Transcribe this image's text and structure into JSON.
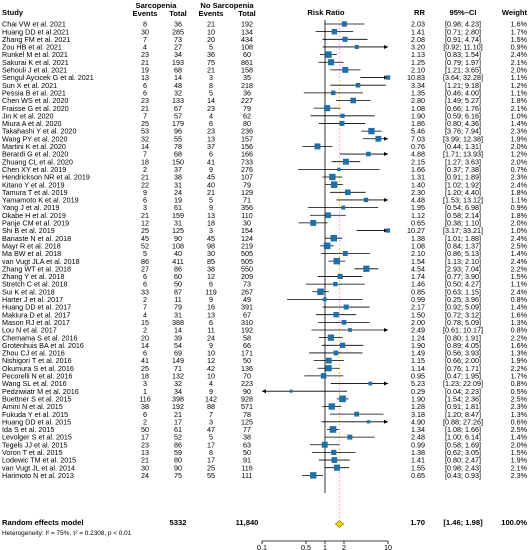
{
  "chart_data": {
    "type": "forest",
    "scale": "log",
    "xlim": [
      0.1,
      10
    ],
    "x_ticks": [
      "0.1",
      "0.5",
      "1",
      "2",
      "10"
    ],
    "x_tick_values": [
      0.1,
      0.5,
      1,
      2,
      10
    ],
    "headers": {
      "study": "Study",
      "group1": "Sarcopenia",
      "group2": "No Sarcopenia",
      "events": "Events",
      "total": "Total",
      "plot": "Risk Ratio",
      "rr": "RR",
      "ci": "95%–CI",
      "weight": "Weight"
    },
    "studies": [
      {
        "study": "Chai VW et al. 2021",
        "e1": 8,
        "t1": 36,
        "e2": 21,
        "t2": 192,
        "rr": 2.03,
        "lo": 0.98,
        "hi": 4.23,
        "rr_text": "2.03",
        "ci_text": "[0.98; 4.23]",
        "weight": "1.6%"
      },
      {
        "study": "Huang DD et al.2021",
        "e1": 30,
        "t1": 285,
        "e2": 10,
        "t2": 134,
        "rr": 1.41,
        "lo": 0.71,
        "hi": 2.8,
        "rr_text": "1.41",
        "ci_text": "[0.71; 2.80]",
        "weight": "1.7%"
      },
      {
        "study": "Zhang FM et al. 2021",
        "e1": 7,
        "t1": 73,
        "e2": 20,
        "t2": 434,
        "rr": 2.08,
        "lo": 0.91,
        "hi": 4.74,
        "rr_text": "2.08",
        "ci_text": "[0.91; 4.74]",
        "weight": "1.5%"
      },
      {
        "study": "Zou HB et al. 2021",
        "e1": 4,
        "t1": 27,
        "e2": 5,
        "t2": 108,
        "rr": 3.2,
        "lo": 0.92,
        "hi": 11.1,
        "rr_text": "3.20",
        "ci_text": "[0.92; 11.10]",
        "weight": "0.9%"
      },
      {
        "study": "Runkel M et al. 2021",
        "e1": 23,
        "t1": 34,
        "e2": 36,
        "t2": 60,
        "rr": 1.13,
        "lo": 0.83,
        "hi": 1.54,
        "rr_text": "1.13",
        "ci_text": "[0.83; 1.54]",
        "weight": "2.4%"
      },
      {
        "study": "Sakurai K et al. 2021",
        "e1": 21,
        "t1": 193,
        "e2": 75,
        "t2": 861,
        "rr": 1.25,
        "lo": 0.79,
        "hi": 1.97,
        "rr_text": "1.25",
        "ci_text": "[0.79; 1.97]",
        "weight": "2.1%"
      },
      {
        "study": "Sehouli J et al. 2021",
        "e1": 19,
        "t1": 68,
        "e2": 21,
        "t2": 158,
        "rr": 2.1,
        "lo": 1.21,
        "hi": 3.65,
        "rr_text": "2.10",
        "ci_text": "[1.21; 3.65]",
        "weight": "2.0%"
      },
      {
        "study": "Sengul Aycicek G et al. 2021",
        "e1": 13,
        "t1": 14,
        "e2": 3,
        "t2": 35,
        "rr": 10.83,
        "lo": 3.64,
        "hi": 32.28,
        "rr_text": "10.83",
        "ci_text": "[3.64; 32.28]",
        "weight": "1.1%"
      },
      {
        "study": "Sun X et al. 2021",
        "e1": 6,
        "t1": 48,
        "e2": 8,
        "t2": 218,
        "rr": 3.34,
        "lo": 1.21,
        "hi": 9.18,
        "rr_text": "3.34",
        "ci_text": "[1.21; 9.18]",
        "weight": "1.2%"
      },
      {
        "study": "Pessia B et al. 2021",
        "e1": 6,
        "t1": 32,
        "e2": 5,
        "t2": 36,
        "rr": 1.35,
        "lo": 0.46,
        "hi": 4.0,
        "rr_text": "1.35",
        "ci_text": "[0.46; 4.00]",
        "weight": "1.1%"
      },
      {
        "study": "Chen WS et al. 2020",
        "e1": 23,
        "t1": 133,
        "e2": 14,
        "t2": 227,
        "rr": 2.8,
        "lo": 1.49,
        "hi": 5.27,
        "rr_text": "2.80",
        "ci_text": "[1.49; 5.27]",
        "weight": "1.8%"
      },
      {
        "study": "Fraisse G et al. 2020",
        "e1": 21,
        "t1": 67,
        "e2": 23,
        "t2": 79,
        "rr": 1.08,
        "lo": 0.66,
        "hi": 1.76,
        "rr_text": "1.08",
        "ci_text": "[0.66; 1.76]",
        "weight": "2.1%"
      },
      {
        "study": "Jin K et al. 2020",
        "e1": 7,
        "t1": 57,
        "e2": 4,
        "t2": 62,
        "rr": 1.9,
        "lo": 0.59,
        "hi": 6.16,
        "rr_text": "1.90",
        "ci_text": "[0.59; 6.16]",
        "weight": "1.0%"
      },
      {
        "study": "Miura A et al. 2020",
        "e1": 25,
        "t1": 179,
        "e2": 6,
        "t2": 80,
        "rr": 1.86,
        "lo": 0.8,
        "hi": 4.36,
        "rr_text": "1.86",
        "ci_text": "[0.80; 4.36]",
        "weight": "1.4%"
      },
      {
        "study": "Takahashi Y et al. 2020",
        "e1": 53,
        "t1": 96,
        "e2": 23,
        "t2": 236,
        "rr": 5.46,
        "lo": 3.76,
        "hi": 7.94,
        "rr_text": "5.46",
        "ci_text": "[3.76; 7.94]",
        "weight": "2.3%"
      },
      {
        "study": "Wang PY et al. 2020",
        "e1": 32,
        "t1": 55,
        "e2": 13,
        "t2": 157,
        "rr": 7.03,
        "lo": 3.99,
        "hi": 12.38,
        "rr_text": "7.03",
        "ci_text": "[3.99; 12.38]",
        "weight": "1.9%"
      },
      {
        "study": "Martini K et al. 2020",
        "e1": 14,
        "t1": 78,
        "e2": 37,
        "t2": 156,
        "rr": 0.76,
        "lo": 0.44,
        "hi": 1.31,
        "rr_text": "0.76",
        "ci_text": "[0.44; 1.31]",
        "weight": "2.0%"
      },
      {
        "study": "Berardi G et al. 2020",
        "e1": 7,
        "t1": 68,
        "e2": 6,
        "t2": 166,
        "rr": 4.88,
        "lo": 1.71,
        "hi": 13.93,
        "rr_text": "4.88",
        "ci_text": "[1.71; 13.93]",
        "weight": "1.2%"
      },
      {
        "study": "Zhuang CL et al. 2020",
        "e1": 18,
        "t1": 150,
        "e2": 41,
        "t2": 733,
        "rr": 2.15,
        "lo": 1.27,
        "hi": 3.63,
        "rr_text": "2.15",
        "ci_text": "[1.27; 3.63]",
        "weight": "2.0%"
      },
      {
        "study": "Chen XY et al. 2019",
        "e1": 2,
        "t1": 37,
        "e2": 9,
        "t2": 276,
        "rr": 1.66,
        "lo": 0.37,
        "hi": 7.38,
        "rr_text": "1.66",
        "ci_text": "[0.37; 7.38]",
        "weight": "0.7%"
      },
      {
        "study": "Hendrickson NR et al. 2019",
        "e1": 21,
        "t1": 38,
        "e2": 45,
        "t2": 107,
        "rr": 1.31,
        "lo": 0.91,
        "hi": 1.89,
        "rr_text": "1.31",
        "ci_text": "[0.91; 1.89]",
        "weight": "2.3%"
      },
      {
        "study": "Kitano Y et al. 2019",
        "e1": 22,
        "t1": 31,
        "e2": 40,
        "t2": 79,
        "rr": 1.4,
        "lo": 1.02,
        "hi": 1.92,
        "rr_text": "1.40",
        "ci_text": "[1.02; 1.92]",
        "weight": "2.4%"
      },
      {
        "study": "Tamura T et al. 2019",
        "e1": 9,
        "t1": 24,
        "e2": 21,
        "t2": 129,
        "rr": 2.3,
        "lo": 1.2,
        "hi": 4.4,
        "rr_text": "2.30",
        "ci_text": "[1.20; 4.40]",
        "weight": "1.8%"
      },
      {
        "study": "Yamamoto K et al. 2019",
        "e1": 6,
        "t1": 19,
        "e2": 5,
        "t2": 71,
        "rr": 4.48,
        "lo": 1.53,
        "hi": 13.12,
        "rr_text": "4.48",
        "ci_text": "[1.53; 13.12]",
        "weight": "1.1%"
      },
      {
        "study": "Yang J et al. 2019",
        "e1": 3,
        "t1": 61,
        "e2": 9,
        "t2": 356,
        "rr": 1.95,
        "lo": 0.54,
        "hi": 6.98,
        "rr_text": "1.95",
        "ci_text": "[0.54; 6.98]",
        "weight": "0.9%"
      },
      {
        "study": "Okabe H et al. 2019",
        "e1": 21,
        "t1": 159,
        "e2": 13,
        "t2": 110,
        "rr": 1.12,
        "lo": 0.58,
        "hi": 2.14,
        "rr_text": "1.12",
        "ci_text": "[0.58; 2.14]",
        "weight": "1.8%"
      },
      {
        "study": "Panje CM et al. 2019",
        "e1": 12,
        "t1": 31,
        "e2": 18,
        "t2": 30,
        "rr": 0.65,
        "lo": 0.38,
        "hi": 1.1,
        "rr_text": "0.65",
        "ci_text": "[0.38; 1.10]",
        "weight": "2.0%"
      },
      {
        "study": "Shi B et al. 2019",
        "e1": 25,
        "t1": 125,
        "e2": 3,
        "t2": 154,
        "rr": 10.27,
        "lo": 3.17,
        "hi": 33.21,
        "rr_text": "10.27",
        "ci_text": "[3.17; 33.21]",
        "weight": "1.0%"
      },
      {
        "study": "Banaste N et al. 2018",
        "e1": 45,
        "t1": 90,
        "e2": 45,
        "t2": 124,
        "rr": 1.38,
        "lo": 1.01,
        "hi": 1.88,
        "rr_text": "1.38",
        "ci_text": "[1.01; 1.88]",
        "weight": "2.4%"
      },
      {
        "study": "Mayr R et al. 2018",
        "e1": 52,
        "t1": 108,
        "e2": 98,
        "t2": 219,
        "rr": 1.08,
        "lo": 0.84,
        "hi": 1.37,
        "rr_text": "1.08",
        "ci_text": "[0.84; 1.37]",
        "weight": "2.5%"
      },
      {
        "study": "Ma BW et al. 2018",
        "e1": 5,
        "t1": 40,
        "e2": 30,
        "t2": 505,
        "rr": 2.1,
        "lo": 0.86,
        "hi": 5.13,
        "rr_text": "2.10",
        "ci_text": "[0.86; 5.13]",
        "weight": "1.4%"
      },
      {
        "study": "van Vugt JLA et al. 2018",
        "e1": 86,
        "t1": 411,
        "e2": 85,
        "t2": 505,
        "rr": 1.54,
        "lo": 1.13,
        "hi": 2.1,
        "rr_text": "1.54",
        "ci_text": "[1.13; 2.10]",
        "weight": "2.4%"
      },
      {
        "study": "Zhang WT et al. 2018",
        "e1": 27,
        "t1": 86,
        "e2": 38,
        "t2": 550,
        "rr": 4.54,
        "lo": 2.93,
        "hi": 7.04,
        "rr_text": "4.54",
        "ci_text": "[2.93; 7.04]",
        "weight": "2.2%"
      },
      {
        "study": "Zhang Y et al. 2018",
        "e1": 6,
        "t1": 60,
        "e2": 12,
        "t2": 209,
        "rr": 1.74,
        "lo": 0.77,
        "hi": 3.9,
        "rr_text": "1.74",
        "ci_text": "[0.77; 3.90]",
        "weight": "1.5%"
      },
      {
        "study": "Stretch C et al. 2018",
        "e1": 6,
        "t1": 50,
        "e2": 6,
        "t2": 73,
        "rr": 1.46,
        "lo": 0.5,
        "hi": 4.27,
        "rr_text": "1.46",
        "ci_text": "[0.50; 4.27]",
        "weight": "1.1%"
      },
      {
        "study": "Sui K et al. 2018",
        "e1": 33,
        "t1": 87,
        "e2": 119,
        "t2": 267,
        "rr": 0.85,
        "lo": 0.63,
        "hi": 1.15,
        "rr_text": "0.85",
        "ci_text": "[0.63; 1.15]",
        "weight": "2.4%"
      },
      {
        "study": "Harter J et al. 2017",
        "e1": 2,
        "t1": 11,
        "e2": 9,
        "t2": 49,
        "rr": 0.99,
        "lo": 0.25,
        "hi": 3.96,
        "rr_text": "0.99",
        "ci_text": "[0.25; 3.96]",
        "weight": "0.8%"
      },
      {
        "study": "Huang DD et al. 2017",
        "e1": 7,
        "t1": 79,
        "e2": 16,
        "t2": 391,
        "rr": 2.17,
        "lo": 0.92,
        "hi": 5.09,
        "rr_text": "2.17",
        "ci_text": "[0.92; 5.09]",
        "weight": "1.4%"
      },
      {
        "study": "Makiura D et al. 2017",
        "e1": 4,
        "t1": 31,
        "e2": 13,
        "t2": 67,
        "rr": 1.5,
        "lo": 0.72,
        "hi": 3.12,
        "rr_text": "1.50",
        "ci_text": "[0.72; 3.12]",
        "weight": "1.6%"
      },
      {
        "study": "Mason RJ et al. 2017",
        "e1": 15,
        "t1": 388,
        "e2": 6,
        "t2": 310,
        "rr": 2.0,
        "lo": 0.78,
        "hi": 5.09,
        "rr_text": "2.00",
        "ci_text": "[0.78; 5.09]",
        "weight": "1.3%"
      },
      {
        "study": "Lou N et al. 2017",
        "e1": 2,
        "t1": 14,
        "e2": 11,
        "t2": 192,
        "rr": 2.49,
        "lo": 0.61,
        "hi": 10.17,
        "rr_text": "2.49",
        "ci_text": "[0.61; 10.17]",
        "weight": "0.8%"
      },
      {
        "study": "Chemama S et al. 2016",
        "e1": 20,
        "t1": 39,
        "e2": 24,
        "t2": 58,
        "rr": 1.24,
        "lo": 0.8,
        "hi": 1.91,
        "rr_text": "1.24",
        "ci_text": "[0.80; 1.91]",
        "weight": "2.2%"
      },
      {
        "study": "Grotenhuis BA et al. 2016",
        "e1": 14,
        "t1": 54,
        "e2": 9,
        "t2": 66,
        "rr": 1.9,
        "lo": 0.89,
        "hi": 4.05,
        "rr_text": "1.90",
        "ci_text": "[0.89; 4.05]",
        "weight": "1.6%"
      },
      {
        "study": "Zhou CJ et al. 2016",
        "e1": 6,
        "t1": 69,
        "e2": 10,
        "t2": 171,
        "rr": 1.49,
        "lo": 0.56,
        "hi": 3.93,
        "rr_text": "1.49",
        "ci_text": "[0.56; 3.93]",
        "weight": "1.3%"
      },
      {
        "study": "Nishigori T et al. 2016",
        "e1": 41,
        "t1": 149,
        "e2": 12,
        "t2": 50,
        "rr": 1.15,
        "lo": 0.66,
        "hi": 2.0,
        "rr_text": "1.15",
        "ci_text": "[0.66; 2.00]",
        "weight": "1.9%"
      },
      {
        "study": "Okumura S et al. 2016",
        "e1": 25,
        "t1": 71,
        "e2": 42,
        "t2": 136,
        "rr": 1.14,
        "lo": 0.76,
        "hi": 1.71,
        "rr_text": "1.14",
        "ci_text": "[0.76; 1.71]",
        "weight": "2.2%"
      },
      {
        "study": "Pecorelli N et al. 2016",
        "e1": 18,
        "t1": 132,
        "e2": 10,
        "t2": 70,
        "rr": 0.95,
        "lo": 0.47,
        "hi": 1.95,
        "rr_text": "0.95",
        "ci_text": "[0.47; 1.95]",
        "weight": "1.7%"
      },
      {
        "study": "Wang SL et al. 2016",
        "e1": 3,
        "t1": 32,
        "e2": 4,
        "t2": 223,
        "rr": 5.23,
        "lo": 1.23,
        "hi": 22.09,
        "rr_text": "5.23",
        "ci_text": "[1.23; 22.09]",
        "weight": "0.8%"
      },
      {
        "study": "Pedziwiatr M et al. 2016",
        "e1": 1,
        "t1": 34,
        "e2": 9,
        "t2": 90,
        "rr": 0.29,
        "lo": 0.04,
        "hi": 2.23,
        "rr_text": "0.29",
        "ci_text": "[0.04; 2.23]",
        "weight": "0.5%"
      },
      {
        "study": "Buettner S et al. 2015",
        "e1": 116,
        "t1": 398,
        "e2": 142,
        "t2": 928,
        "rr": 1.9,
        "lo": 1.54,
        "hi": 2.36,
        "rr_text": "1.90",
        "ci_text": "[1.54; 2.36]",
        "weight": "2.5%"
      },
      {
        "study": "Amini N et al. 2015",
        "e1": 38,
        "t1": 192,
        "e2": 88,
        "t2": 571,
        "rr": 1.28,
        "lo": 0.91,
        "hi": 1.81,
        "rr_text": "1.28",
        "ci_text": "[0.91; 1.81]",
        "weight": "2.3%"
      },
      {
        "study": "Fukuda Y et al. 2015",
        "e1": 6,
        "t1": 21,
        "e2": 7,
        "t2": 78,
        "rr": 3.18,
        "lo": 1.2,
        "hi": 8.47,
        "rr_text": "3.18",
        "ci_text": "[1.20; 8.47]",
        "weight": "1.3%"
      },
      {
        "study": "Huang DD et al. 2015",
        "e1": 2,
        "t1": 17,
        "e2": 3,
        "t2": 125,
        "rr": 4.9,
        "lo": 0.88,
        "hi": 27.26,
        "rr_text": "4.90",
        "ci_text": "[0.88; 27.26]",
        "weight": "0.6%"
      },
      {
        "study": "Ida S et al. 2015",
        "e1": 50,
        "t1": 61,
        "e2": 47,
        "t2": 77,
        "rr": 1.34,
        "lo": 1.08,
        "hi": 1.66,
        "rr_text": "1.34",
        "ci_text": "[1.08; 1.66]",
        "weight": "2.5%"
      },
      {
        "study": "Levolger S et al. 2015",
        "e1": 17,
        "t1": 52,
        "e2": 5,
        "t2": 38,
        "rr": 2.48,
        "lo": 1.0,
        "hi": 6.14,
        "rr_text": "2.48",
        "ci_text": "[1.00; 6.14]",
        "weight": "1.4%"
      },
      {
        "study": "Tegels JJ et al. 2015",
        "e1": 23,
        "t1": 86,
        "e2": 17,
        "t2": 63,
        "rr": 0.99,
        "lo": 0.58,
        "hi": 1.69,
        "rr_text": "0.99",
        "ci_text": "[0.58; 1.69]",
        "weight": "2.0%"
      },
      {
        "study": "Voron T et al. 2015",
        "e1": 13,
        "t1": 59,
        "e2": 8,
        "t2": 50,
        "rr": 1.38,
        "lo": 0.62,
        "hi": 3.05,
        "rr_text": "1.38",
        "ci_text": "[0.62; 3.05]",
        "weight": "1.5%"
      },
      {
        "study": "Lodewic TM et al. 2015",
        "e1": 21,
        "t1": 80,
        "e2": 17,
        "t2": 91,
        "rr": 1.41,
        "lo": 0.8,
        "hi": 2.47,
        "rr_text": "1.41",
        "ci_text": "[0.80; 2.47]",
        "weight": "1.9%"
      },
      {
        "study": "van Vugt JL et al. 2014",
        "e1": 30,
        "t1": 90,
        "e2": 25,
        "t2": 116,
        "rr": 1.55,
        "lo": 0.98,
        "hi": 2.43,
        "rr_text": "1.55",
        "ci_text": "[0.98; 2.43]",
        "weight": "2.1%"
      },
      {
        "study": "Harimoto N et al. 2013",
        "e1": 24,
        "t1": 75,
        "e2": 55,
        "t2": 111,
        "rr": 0.65,
        "lo": 0.43,
        "hi": 0.93,
        "rr_text": "0.65",
        "ci_text": "[0.43; 0.93]",
        "weight": "2.3%"
      }
    ],
    "summary": {
      "label": "Random effects model",
      "t1": 5332,
      "t2": "11,840",
      "rr": 1.7,
      "lo": 1.46,
      "hi": 1.98,
      "rr_text": "1.70",
      "ci_text": "[1.46; 1.98]",
      "weight": "100.0%"
    },
    "heterogeneity": "Heterogeneity: I² = 75%, τ² = 0.2308, p < 0.01",
    "colors": {
      "box": "#1f6fa8",
      "ci_line": "#000000",
      "summary": "#f0d000",
      "summary_line": "#f0d000",
      "ref_line": "#000000"
    }
  }
}
